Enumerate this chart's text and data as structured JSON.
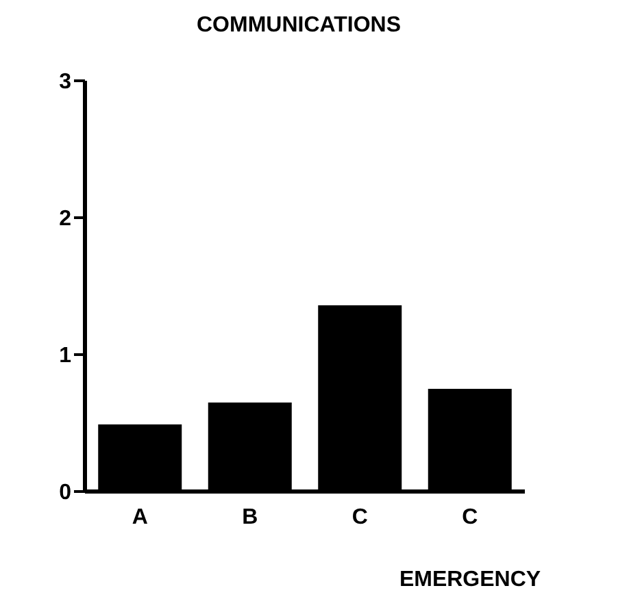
{
  "chart_data": {
    "type": "bar",
    "title": "COMMUNICATIONS",
    "xlabel": "EMERGENCY",
    "categories": [
      "A",
      "B",
      "C",
      "C"
    ],
    "values": [
      0.49,
      0.65,
      1.36,
      0.75
    ],
    "color": "#000000",
    "ylim": [
      0,
      3
    ],
    "yticks": [
      0,
      1,
      2,
      3
    ],
    "grid": false
  }
}
